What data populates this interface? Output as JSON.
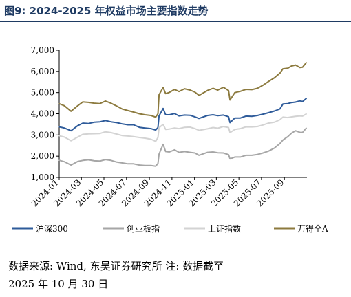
{
  "figure": {
    "title": "图9:  2024-2025 年权益市场主要指数走势",
    "source_line1": "数据来源:  Wind,  东吴证券研究所  注:  数据截至",
    "source_line2": "2025 年 10 月 30 日"
  },
  "colors": {
    "title": "#1f3b63",
    "series": [
      "#2e5b9a",
      "#a6a6a6",
      "#d3d3d3",
      "#8c7a3e"
    ]
  },
  "chart_data": {
    "type": "line",
    "title": "",
    "xlabel": "",
    "ylabel": "",
    "ylim": [
      1000,
      7000
    ],
    "yticks": [
      1000,
      2000,
      3000,
      4000,
      5000,
      6000,
      7000
    ],
    "ytick_labels": [
      "1,000",
      "2,000",
      "3,000",
      "4,000",
      "5,000",
      "6,000",
      "7,000"
    ],
    "xlim": [
      "2024-01",
      "2025-11"
    ],
    "xtick_labels": [
      "2024-01",
      "2024-03",
      "2024-05",
      "2024-07",
      "2024-09",
      "2024-11",
      "2025-01",
      "2025-03",
      "2025-05",
      "2025-07",
      "2025-09"
    ],
    "grid": false,
    "legend_position": "bottom",
    "x": [
      "2024-01-02",
      "2024-01-15",
      "2024-02-02",
      "2024-02-20",
      "2024-03-05",
      "2024-03-20",
      "2024-04-05",
      "2024-04-20",
      "2024-05-05",
      "2024-05-20",
      "2024-06-05",
      "2024-06-20",
      "2024-07-05",
      "2024-07-20",
      "2024-08-05",
      "2024-08-20",
      "2024-09-05",
      "2024-09-18",
      "2024-09-24",
      "2024-09-27",
      "2024-10-08",
      "2024-10-15",
      "2024-10-25",
      "2024-11-08",
      "2024-11-20",
      "2024-12-05",
      "2024-12-20",
      "2025-01-02",
      "2025-01-13",
      "2025-02-05",
      "2025-02-20",
      "2025-03-05",
      "2025-03-20",
      "2025-04-03",
      "2025-04-07",
      "2025-04-20",
      "2025-05-05",
      "2025-05-20",
      "2025-06-05",
      "2025-06-20",
      "2025-07-05",
      "2025-07-20",
      "2025-08-05",
      "2025-08-20",
      "2025-08-28",
      "2025-09-10",
      "2025-09-20",
      "2025-10-01",
      "2025-10-13",
      "2025-10-20",
      "2025-10-30"
    ],
    "series": [
      {
        "name": "沪深300",
        "values": [
          3380,
          3330,
          3200,
          3440,
          3560,
          3540,
          3600,
          3620,
          3680,
          3620,
          3580,
          3520,
          3480,
          3480,
          3360,
          3330,
          3300,
          3230,
          3350,
          3900,
          4250,
          3950,
          3950,
          4010,
          3900,
          3940,
          3930,
          3850,
          3780,
          3920,
          3950,
          3910,
          3940,
          3860,
          3580,
          3800,
          3800,
          3890,
          3880,
          3920,
          3980,
          4050,
          4130,
          4230,
          4460,
          4480,
          4530,
          4550,
          4610,
          4580,
          4720
        ]
      },
      {
        "name": "创业板指",
        "values": [
          1800,
          1740,
          1580,
          1750,
          1800,
          1830,
          1780,
          1770,
          1840,
          1800,
          1720,
          1680,
          1640,
          1640,
          1580,
          1560,
          1560,
          1530,
          1660,
          2100,
          2560,
          2220,
          2200,
          2300,
          2180,
          2220,
          2180,
          2150,
          2040,
          2180,
          2200,
          2160,
          2150,
          2070,
          1870,
          1960,
          1960,
          2040,
          2040,
          2080,
          2150,
          2240,
          2380,
          2600,
          2760,
          2920,
          3080,
          3200,
          3120,
          3120,
          3320
        ]
      },
      {
        "name": "上证指数",
        "values": [
          2960,
          2900,
          2730,
          2900,
          3030,
          3050,
          3060,
          3070,
          3150,
          3110,
          3040,
          2970,
          2950,
          2920,
          2880,
          2850,
          2800,
          2700,
          2880,
          3340,
          3500,
          3260,
          3280,
          3330,
          3300,
          3360,
          3370,
          3300,
          3220,
          3290,
          3350,
          3320,
          3400,
          3350,
          3110,
          3260,
          3300,
          3380,
          3380,
          3400,
          3470,
          3560,
          3600,
          3720,
          3840,
          3820,
          3850,
          3880,
          3900,
          3890,
          3986
        ]
      },
      {
        "name": "万得全A",
        "values": [
          4470,
          4380,
          4120,
          4380,
          4560,
          4540,
          4500,
          4480,
          4600,
          4500,
          4360,
          4220,
          4150,
          4080,
          4000,
          3950,
          3920,
          3840,
          4000,
          4900,
          5240,
          4950,
          5010,
          5150,
          5050,
          5180,
          5120,
          5020,
          4870,
          5100,
          5200,
          5120,
          5250,
          5100,
          4650,
          5000,
          5060,
          5150,
          5140,
          5200,
          5350,
          5520,
          5700,
          5920,
          6120,
          6150,
          6250,
          6300,
          6180,
          6200,
          6410
        ]
      }
    ]
  }
}
